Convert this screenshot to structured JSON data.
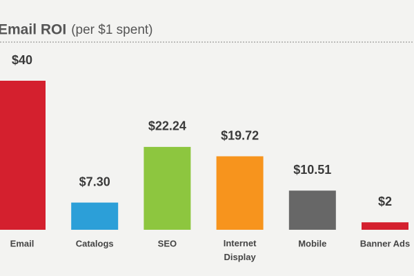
{
  "chart_data": {
    "type": "bar",
    "title": "Email ROI",
    "subtitle": "(per $1 spent)",
    "categories": [
      "Email",
      "Catalogs",
      "SEO",
      "Internet Display",
      "Mobile",
      "Banner Ads"
    ],
    "values": [
      40,
      7.3,
      22.24,
      19.72,
      10.51,
      2
    ],
    "value_labels": [
      "$40",
      "$7.30",
      "$22.24",
      "$19.72",
      "$10.51",
      "$2"
    ],
    "colors": [
      "#d4202e",
      "#2c9fd8",
      "#8dc63f",
      "#f7941d",
      "#676767",
      "#d4202e"
    ]
  }
}
